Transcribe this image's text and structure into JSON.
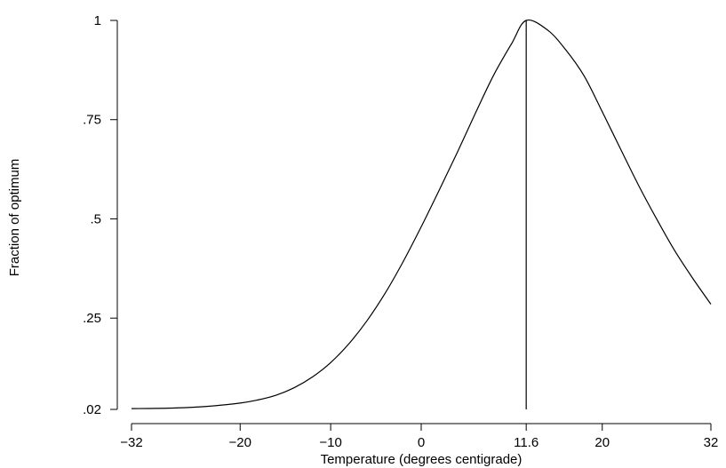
{
  "chart_data": {
    "type": "line",
    "title": "",
    "xlabel": "Temperature (degrees centigrade)",
    "ylabel": "Fraction of optimum",
    "xlim": [
      -32,
      32
    ],
    "ylim": [
      0.02,
      1
    ],
    "x_ticks": [
      -32,
      -20,
      -10,
      0,
      11.6,
      20,
      32
    ],
    "x_tick_labels": [
      "−32",
      "−20",
      "−10",
      "0",
      "11.6",
      "20",
      "32"
    ],
    "y_ticks": [
      0.02,
      0.25,
      0.5,
      0.75,
      1
    ],
    "y_tick_labels": [
      ".02",
      ".25",
      ".5",
      ".75",
      "1"
    ],
    "grid": false,
    "legend": "none",
    "reference_line": {
      "x": 11.6,
      "y_from": 0.02,
      "y_to": 1
    },
    "series": [
      {
        "x": [
          -32,
          -28,
          -24,
          -20,
          -18,
          -16,
          -14,
          -12,
          -10,
          -8,
          -6,
          -4,
          -2,
          0,
          2,
          4,
          6,
          8,
          10,
          11.6,
          14,
          16,
          18,
          20,
          22,
          24,
          26,
          28,
          30,
          32
        ],
        "values": [
          0.022,
          0.023,
          0.027,
          0.036,
          0.044,
          0.056,
          0.075,
          0.102,
          0.138,
          0.185,
          0.243,
          0.312,
          0.392,
          0.48,
          0.573,
          0.668,
          0.767,
          0.862,
          0.942,
          1.0,
          0.975,
          0.925,
          0.86,
          0.77,
          0.677,
          0.585,
          0.5,
          0.42,
          0.35,
          0.285
        ]
      }
    ]
  }
}
